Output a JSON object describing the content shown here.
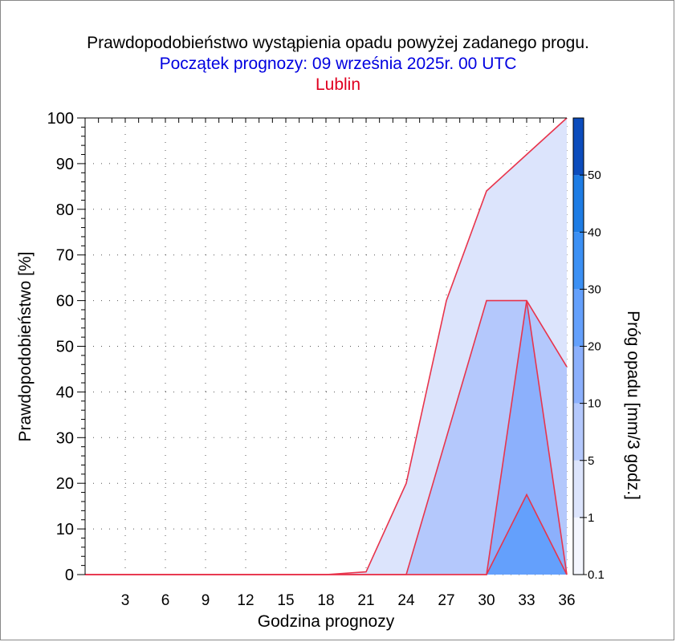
{
  "header": {
    "title": "Prawdopodobieństwo wystąpienia opadu powyżej zadanego progu.",
    "subtitle": "Początek prognozy: 09 września 2025r. 00 UTC",
    "station": "Lublin"
  },
  "chart_data": {
    "type": "area",
    "title": "Prawdopodobieństwo wystąpienia opadu powyżej zadanego progu.",
    "subtitle": "Początek prognozy: 09 września 2025r. 00 UTC",
    "station": "Lublin",
    "xlabel": "Godzina prognozy",
    "ylabel": "Prawdopodobieństwo [%]",
    "colorbar_label": "Próg opadu [mm/3 godz.]",
    "x": [
      0,
      3,
      6,
      9,
      12,
      15,
      18,
      21,
      24,
      27,
      30,
      33,
      36
    ],
    "xlim": [
      0,
      36
    ],
    "ylim": [
      0,
      100
    ],
    "x_ticks": [
      "3",
      "6",
      "9",
      "12",
      "15",
      "18",
      "21",
      "24",
      "27",
      "30",
      "33",
      "36"
    ],
    "y_ticks": [
      "0",
      "10",
      "20",
      "30",
      "40",
      "50",
      "60",
      "70",
      "80",
      "90",
      "100"
    ],
    "grid": true,
    "series": [
      {
        "threshold": 0.1,
        "color": "#dce4fc",
        "values": [
          0,
          0,
          0,
          0,
          0,
          0,
          0,
          0.6,
          20,
          60,
          84,
          92,
          100
        ]
      },
      {
        "threshold": 1,
        "color": "#b4c8fc",
        "values": [
          0,
          0,
          0,
          0,
          0,
          0,
          0,
          0,
          0,
          30,
          60,
          60,
          45.5
        ]
      },
      {
        "threshold": 2,
        "color": "#8cb0fc",
        "values": [
          0,
          0,
          0,
          0,
          0,
          0,
          0,
          0,
          0,
          0,
          0,
          60,
          0
        ]
      },
      {
        "threshold": 5,
        "color": "#64a0fc",
        "values": [
          0,
          0,
          0,
          0,
          0,
          0,
          0,
          0,
          0,
          0,
          0,
          17.5,
          0
        ]
      }
    ],
    "colorbar": {
      "label_values": [
        "0.1",
        "1",
        "5",
        "10",
        "20",
        "30",
        "40",
        "50"
      ],
      "segments": [
        {
          "color": "#f4f6fe"
        },
        {
          "color": "#dce4fc"
        },
        {
          "color": "#b4c8fc"
        },
        {
          "color": "#8cb0fc"
        },
        {
          "color": "#64a0fc"
        },
        {
          "color": "#3c90f4"
        },
        {
          "color": "#1e7ce4"
        },
        {
          "color": "#1464d4"
        },
        {
          "color": "#0c4cbc"
        }
      ]
    },
    "line_color": "#e8344c"
  }
}
